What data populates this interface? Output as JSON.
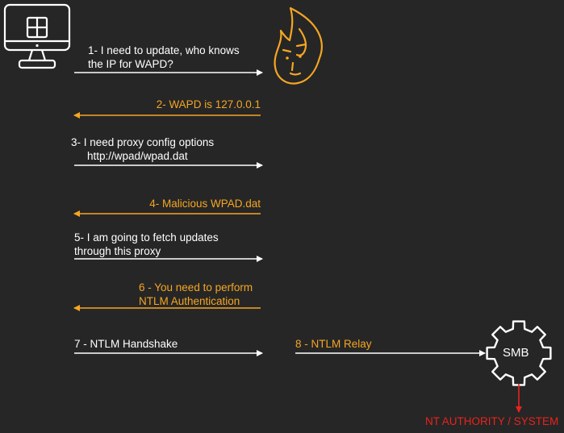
{
  "colors": {
    "background": "#262626",
    "client": "#ffffff",
    "attacker": "#f5a623",
    "result": "#e8231c"
  },
  "icons": {
    "client": "windows-monitor-icon",
    "attacker": "fire-face-icon",
    "server": "gear-icon"
  },
  "steps": [
    {
      "id": "step1",
      "lines": [
        "1- I need to update, who knows",
        "the IP for WAPD?"
      ]
    },
    {
      "id": "step2",
      "lines": [
        "2- WAPD is 127.0.0.1"
      ]
    },
    {
      "id": "step3",
      "lines": [
        "3- I need proxy config options",
        "http://wpad/wpad.dat"
      ]
    },
    {
      "id": "step4",
      "lines": [
        "4- Malicious WPAD.dat"
      ]
    },
    {
      "id": "step5",
      "lines": [
        "5- I am going to fetch updates",
        "through this proxy"
      ]
    },
    {
      "id": "step6",
      "lines": [
        "6 - You need to perform",
        "NTLM Authentication"
      ]
    },
    {
      "id": "step7",
      "lines": [
        "7 - NTLM Handshake"
      ]
    },
    {
      "id": "step8",
      "lines": [
        "8 - NTLM Relay"
      ]
    }
  ],
  "server_label": "SMB",
  "result_label": "NT AUTHORITY / SYSTEM"
}
